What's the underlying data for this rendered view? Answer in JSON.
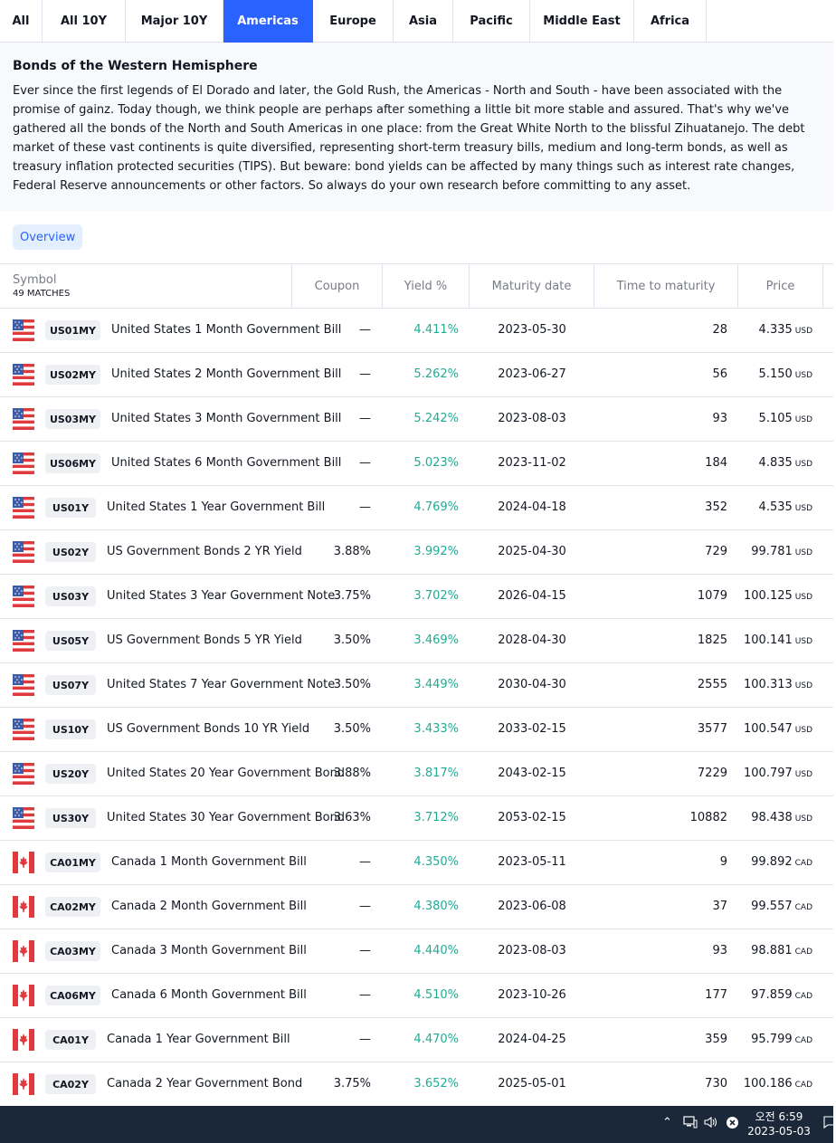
{
  "tabs": [
    {
      "label": "All",
      "active": false
    },
    {
      "label": "All 10Y",
      "active": false
    },
    {
      "label": "Major 10Y",
      "active": false
    },
    {
      "label": "Americas",
      "active": true
    },
    {
      "label": "Europe",
      "active": false
    },
    {
      "label": "Asia",
      "active": false
    },
    {
      "label": "Pacific",
      "active": false
    },
    {
      "label": "Middle East",
      "active": false
    },
    {
      "label": "Africa",
      "active": false
    }
  ],
  "description": {
    "title": "Bonds of the Western Hemisphere",
    "body": "Ever since the first legends of El Dorado and later, the Gold Rush, the Americas - North and South - have been associated with the promise of gainz. Today though, we think people are perhaps after something a little bit more stable and assured. That's why we've gathered all the bonds of the North and South Americas in one place: from the Great White North to the blissful Zihuatanejo. The debt market of these vast continents is quite diversified, representing short-term treasury bills, medium and long-term bonds, as well as treasury inflation protected securities (TIPS). But beware: bond yields can be affected by many things such as interest rate changes, Federal Reserve announcements or other factors. So always do your own research before committing to any asset."
  },
  "view_tab": "Overview",
  "table": {
    "headers": {
      "symbol": "Symbol",
      "matches": "49 MATCHES",
      "coupon": "Coupon",
      "yield": "Yield %",
      "maturity": "Maturity date",
      "ttm": "Time to maturity",
      "price": "Price"
    },
    "rows": [
      {
        "flag": "us-flag-icon",
        "symbol": "US01MY",
        "name": "United States 1 Month Government Bill",
        "coupon": "—",
        "yield": "4.411%",
        "maturity": "2023-05-30",
        "ttm": "28",
        "price": "4.335",
        "currency": "USD"
      },
      {
        "flag": "us-flag-icon",
        "symbol": "US02MY",
        "name": "United States 2 Month Government Bill",
        "coupon": "—",
        "yield": "5.262%",
        "maturity": "2023-06-27",
        "ttm": "56",
        "price": "5.150",
        "currency": "USD"
      },
      {
        "flag": "us-flag-icon",
        "symbol": "US03MY",
        "name": "United States 3 Month Government Bill",
        "coupon": "—",
        "yield": "5.242%",
        "maturity": "2023-08-03",
        "ttm": "93",
        "price": "5.105",
        "currency": "USD"
      },
      {
        "flag": "us-flag-icon",
        "symbol": "US06MY",
        "name": "United States 6 Month Government Bill",
        "coupon": "—",
        "yield": "5.023%",
        "maturity": "2023-11-02",
        "ttm": "184",
        "price": "4.835",
        "currency": "USD"
      },
      {
        "flag": "us-flag-icon",
        "symbol": "US01Y",
        "name": "United States 1 Year Government Bill",
        "coupon": "—",
        "yield": "4.769%",
        "maturity": "2024-04-18",
        "ttm": "352",
        "price": "4.535",
        "currency": "USD"
      },
      {
        "flag": "us-flag-icon",
        "symbol": "US02Y",
        "name": "US Government Bonds 2 YR Yield",
        "coupon": "3.88%",
        "yield": "3.992%",
        "maturity": "2025-04-30",
        "ttm": "729",
        "price": "99.781",
        "currency": "USD"
      },
      {
        "flag": "us-flag-icon",
        "symbol": "US03Y",
        "name": "United States 3 Year Government Note",
        "coupon": "3.75%",
        "yield": "3.702%",
        "maturity": "2026-04-15",
        "ttm": "1079",
        "price": "100.125",
        "currency": "USD"
      },
      {
        "flag": "us-flag-icon",
        "symbol": "US05Y",
        "name": "US Government Bonds 5 YR Yield",
        "coupon": "3.50%",
        "yield": "3.469%",
        "maturity": "2028-04-30",
        "ttm": "1825",
        "price": "100.141",
        "currency": "USD"
      },
      {
        "flag": "us-flag-icon",
        "symbol": "US07Y",
        "name": "United States 7 Year Government Note",
        "coupon": "3.50%",
        "yield": "3.449%",
        "maturity": "2030-04-30",
        "ttm": "2555",
        "price": "100.313",
        "currency": "USD"
      },
      {
        "flag": "us-flag-icon",
        "symbol": "US10Y",
        "name": "US Government Bonds 10 YR Yield",
        "coupon": "3.50%",
        "yield": "3.433%",
        "maturity": "2033-02-15",
        "ttm": "3577",
        "price": "100.547",
        "currency": "USD"
      },
      {
        "flag": "us-flag-icon",
        "symbol": "US20Y",
        "name": "United States 20 Year Government Bond",
        "coupon": "3.88%",
        "yield": "3.817%",
        "maturity": "2043-02-15",
        "ttm": "7229",
        "price": "100.797",
        "currency": "USD"
      },
      {
        "flag": "us-flag-icon",
        "symbol": "US30Y",
        "name": "United States 30 Year Government Bond",
        "coupon": "3.63%",
        "yield": "3.712%",
        "maturity": "2053-02-15",
        "ttm": "10882",
        "price": "98.438",
        "currency": "USD"
      },
      {
        "flag": "ca-flag-icon",
        "symbol": "CA01MY",
        "name": "Canada 1 Month Government Bill",
        "coupon": "—",
        "yield": "4.350%",
        "maturity": "2023-05-11",
        "ttm": "9",
        "price": "99.892",
        "currency": "CAD"
      },
      {
        "flag": "ca-flag-icon",
        "symbol": "CA02MY",
        "name": "Canada 2 Month Government Bill",
        "coupon": "—",
        "yield": "4.380%",
        "maturity": "2023-06-08",
        "ttm": "37",
        "price": "99.557",
        "currency": "CAD"
      },
      {
        "flag": "ca-flag-icon",
        "symbol": "CA03MY",
        "name": "Canada 3 Month Government Bill",
        "coupon": "—",
        "yield": "4.440%",
        "maturity": "2023-08-03",
        "ttm": "93",
        "price": "98.881",
        "currency": "CAD"
      },
      {
        "flag": "ca-flag-icon",
        "symbol": "CA06MY",
        "name": "Canada 6 Month Government Bill",
        "coupon": "—",
        "yield": "4.510%",
        "maturity": "2023-10-26",
        "ttm": "177",
        "price": "97.859",
        "currency": "CAD"
      },
      {
        "flag": "ca-flag-icon",
        "symbol": "CA01Y",
        "name": "Canada 1 Year Government Bill",
        "coupon": "—",
        "yield": "4.470%",
        "maturity": "2024-04-25",
        "ttm": "359",
        "price": "95.799",
        "currency": "CAD"
      },
      {
        "flag": "ca-flag-icon",
        "symbol": "CA02Y",
        "name": "Canada 2 Year Government Bond",
        "coupon": "3.75%",
        "yield": "3.652%",
        "maturity": "2025-05-01",
        "ttm": "730",
        "price": "100.186",
        "currency": "CAD"
      }
    ]
  },
  "taskbar": {
    "time": "오전 6:59",
    "date": "2023-05-03"
  },
  "colors": {
    "accent": "#2962ff",
    "yield_green": "#22ab94",
    "taskbar_bg": "#1b2839"
  }
}
